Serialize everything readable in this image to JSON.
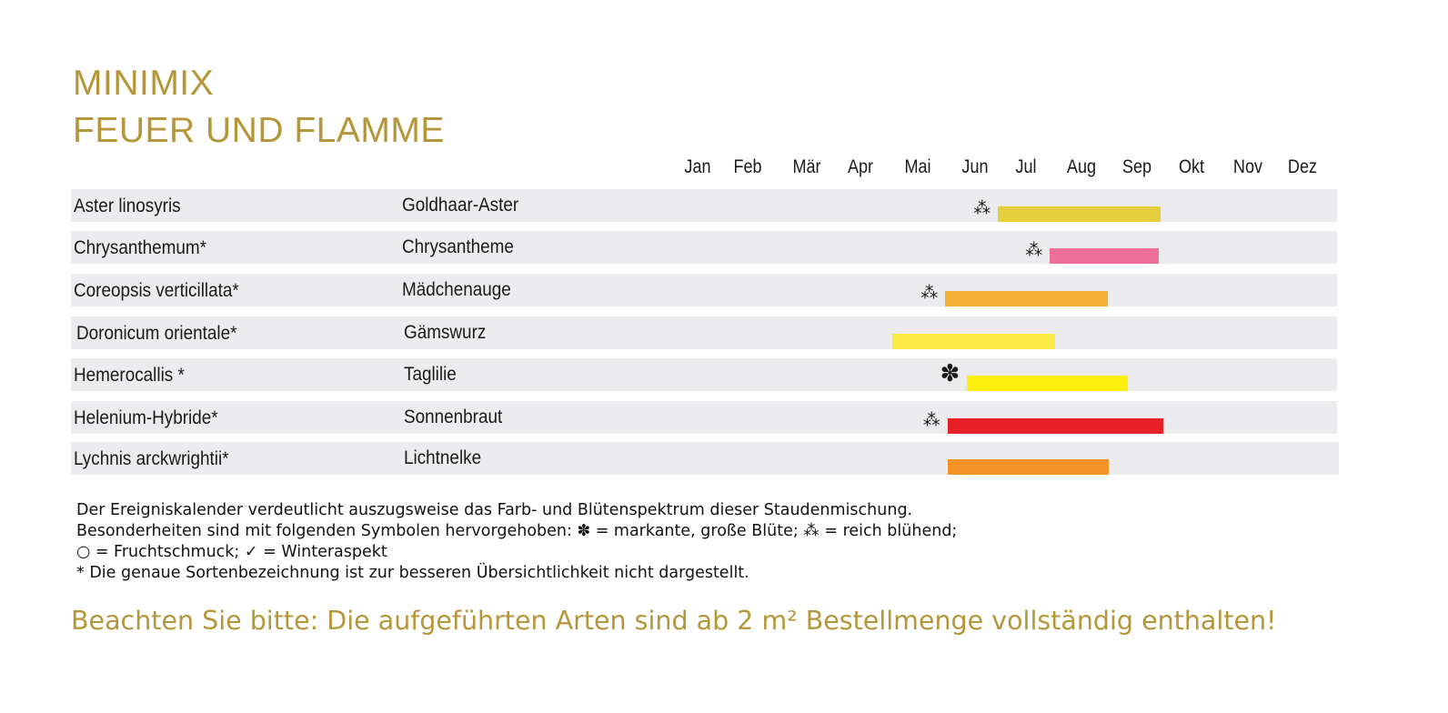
{
  "header": {
    "title_line1": "MINIMIX",
    "title_line2": "FEUER UND FLAMME"
  },
  "colors": {
    "accent": "#b5963a",
    "row_background": "#ececee"
  },
  "chart_data": {
    "type": "gantt",
    "months": [
      "Jan",
      "Feb",
      "Mär",
      "Apr",
      "Mai",
      "Jun",
      "Jul",
      "Aug",
      "Sep",
      "Okt",
      "Nov",
      "Dez"
    ],
    "series": [
      {
        "latin": "Aster linosyris",
        "german": "Goldhaar-Aster",
        "color": "#e6cf3c",
        "start": 6.45,
        "end": 9.43,
        "marker": "abundant"
      },
      {
        "latin": "Chrysanthemum*",
        "german": "Chrysantheme",
        "color": "#ef6f9b",
        "start": 7.43,
        "end": 9.4,
        "marker": "abundant"
      },
      {
        "latin": "Coreopsis verticillata*",
        "german": "Mädchenauge",
        "color": "#f2ae37",
        "start": 5.48,
        "end": 8.48,
        "marker": "abundant"
      },
      {
        "latin": "Doronicum orientale*",
        "german": "Gämswurz",
        "color": "#faea43",
        "start": 4.55,
        "end": 7.52,
        "marker": null
      },
      {
        "latin": "Hemerocallis *",
        "german": "Taglilie",
        "color": "#fdee0c",
        "start": 5.85,
        "end": 8.83,
        "marker": "large"
      },
      {
        "latin": "Helenium-Hybride*",
        "german": "Sonnenbraut",
        "color": "#e82128",
        "start": 5.52,
        "end": 9.48,
        "marker": "abundant"
      },
      {
        "latin": "Lychnis arckwrightii*",
        "german": "Lichtnelke",
        "color": "#f39328",
        "start": 5.52,
        "end": 8.5,
        "marker": null
      }
    ]
  },
  "symbols": {
    "large": "✽",
    "abundant": "⁂"
  },
  "notes": {
    "line1": "Der Ereigniskalender verdeutlicht auszugsweise das Farb- und Blütenspektrum dieser Staudenmischung.",
    "line2": "Besonderheiten sind mit folgenden Symbolen hervorgehoben: ✽ = markante, große Blüte; ⁂ = reich blühend;",
    "line3": "○ = Fruchtschmuck; ✓ = Winteraspekt",
    "line4": "* Die genaue Sortenbezeichnung ist zur besseren Übersichtlichkeit nicht dargestellt."
  },
  "footnote": "Beachten Sie bitte: Die aufgeführten Arten sind ab 2 m² Bestellmenge vollständig enthalten!"
}
